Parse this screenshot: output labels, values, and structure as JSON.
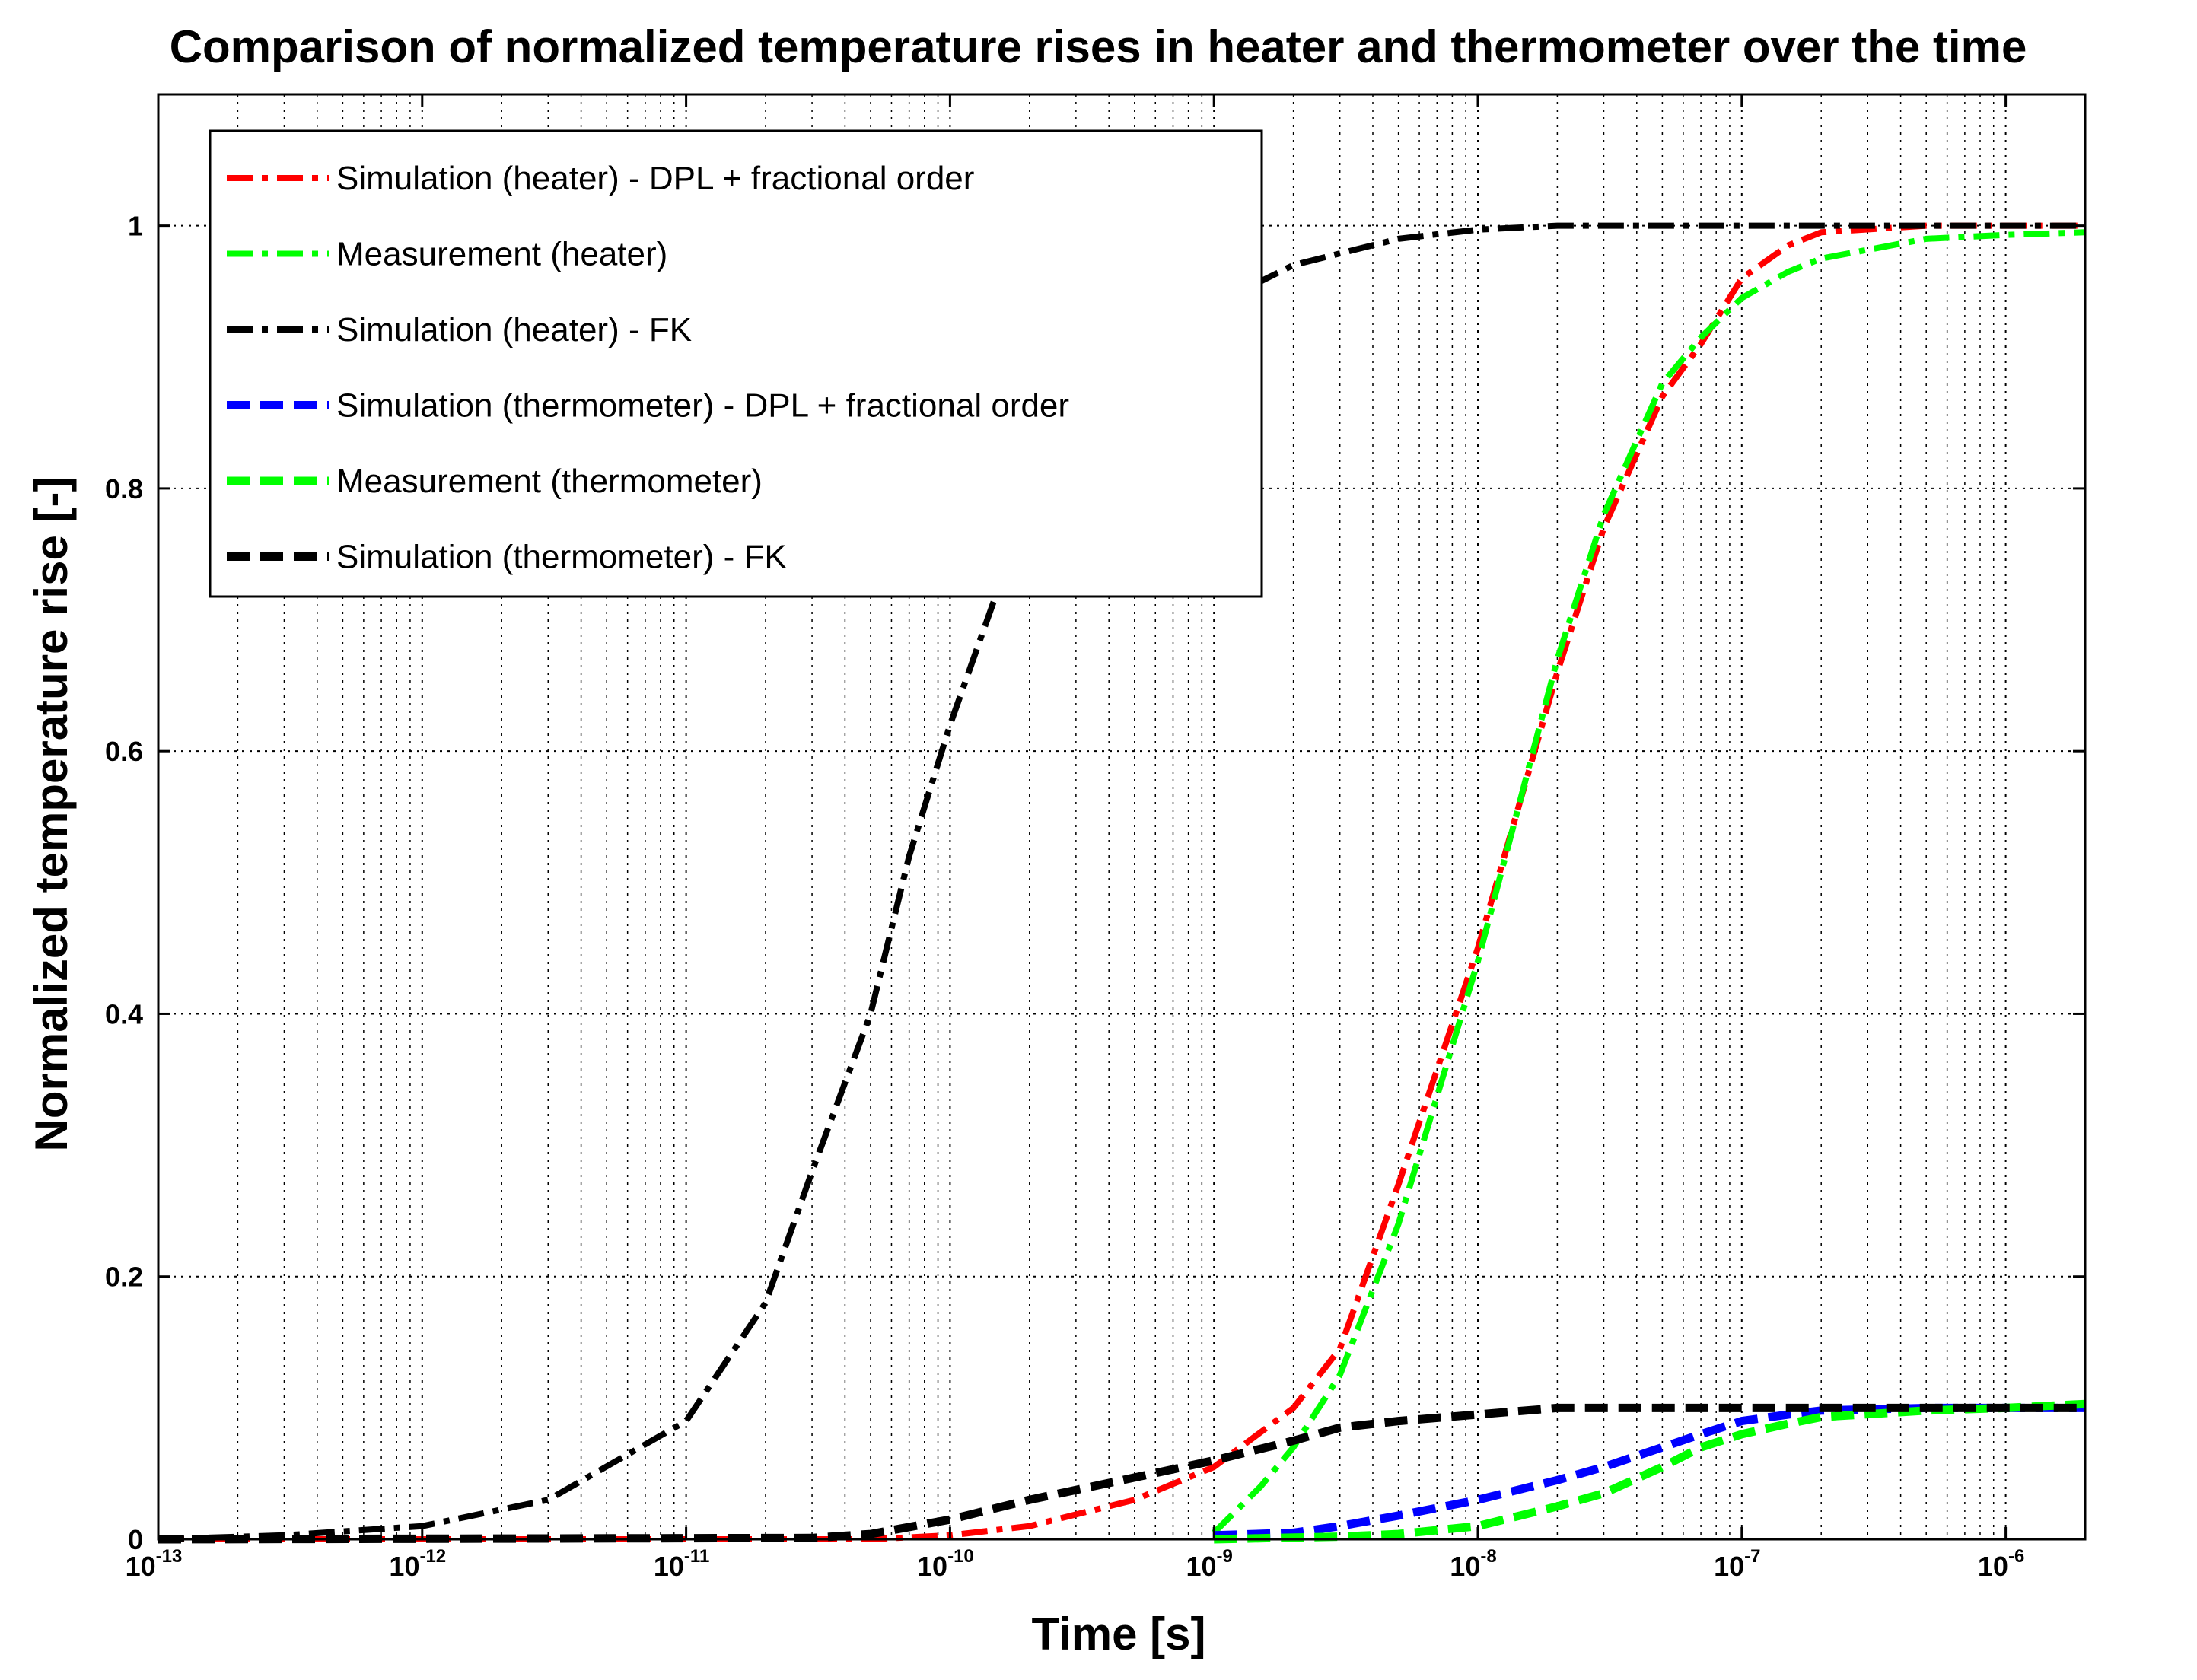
{
  "chart_data": {
    "type": "line",
    "title": "Comparison of normalized temperature rises in heater and thermometer over the time",
    "xlabel": "Time [s]",
    "ylabel": "Normalized temperature rise [-]",
    "xscale": "log",
    "xlim": [
      1e-13,
      2e-06
    ],
    "ylim": [
      0,
      1.1
    ],
    "x_ticks": [
      {
        "base": "10",
        "exp": "-13",
        "value": 1e-13
      },
      {
        "base": "10",
        "exp": "-12",
        "value": 1e-12
      },
      {
        "base": "10",
        "exp": "-11",
        "value": 1e-11
      },
      {
        "base": "10",
        "exp": "-10",
        "value": 1e-10
      },
      {
        "base": "10",
        "exp": "-9",
        "value": 1e-09
      },
      {
        "base": "10",
        "exp": "-8",
        "value": 1e-08
      },
      {
        "base": "10",
        "exp": "-7",
        "value": 1e-07
      },
      {
        "base": "10",
        "exp": "-6",
        "value": 1e-06
      }
    ],
    "y_ticks": [
      {
        "label": "0",
        "value": 0
      },
      {
        "label": "0.2",
        "value": 0.2
      },
      {
        "label": "0.4",
        "value": 0.4
      },
      {
        "label": "0.6",
        "value": 0.6
      },
      {
        "label": "0.8",
        "value": 0.8
      },
      {
        "label": "1",
        "value": 1
      }
    ],
    "grid": true,
    "legend_position": "top-left",
    "series": [
      {
        "name": "Simulation (heater) - DPL + fractional order",
        "color": "#ff0000",
        "dash": "dashdot",
        "x": [
          1e-13,
          1e-12,
          1e-11,
          5e-11,
          1e-10,
          2e-10,
          5e-10,
          1e-09,
          2e-09,
          3e-09,
          5e-09,
          1e-08,
          2e-08,
          3e-08,
          5e-08,
          7e-08,
          1e-07,
          1.5e-07,
          2e-07,
          5e-07,
          1e-06,
          2e-06
        ],
        "y": [
          0,
          0,
          0,
          0,
          0.003,
          0.01,
          0.03,
          0.055,
          0.1,
          0.145,
          0.27,
          0.45,
          0.66,
          0.77,
          0.87,
          0.91,
          0.96,
          0.985,
          0.995,
          1.0,
          1.0,
          1.0
        ]
      },
      {
        "name": "Measurement (heater)",
        "color": "#00ff00",
        "dash": "dashdot",
        "x": [
          1e-09,
          1.5e-09,
          2e-09,
          3e-09,
          5e-09,
          1e-08,
          2e-08,
          3e-08,
          5e-08,
          7e-08,
          1e-07,
          1.5e-07,
          2e-07,
          5e-07,
          1e-06,
          2e-06
        ],
        "y": [
          0.005,
          0.04,
          0.07,
          0.125,
          0.24,
          0.44,
          0.67,
          0.78,
          0.88,
          0.915,
          0.945,
          0.965,
          0.975,
          0.99,
          0.993,
          0.995
        ]
      },
      {
        "name": "Simulation (heater) - FK",
        "color": "#000000",
        "dash": "dashdot",
        "x": [
          1e-13,
          3e-13,
          1e-12,
          3e-12,
          1e-11,
          2e-11,
          3e-11,
          5e-11,
          7e-11,
          1e-10,
          1.5e-10,
          2e-10,
          3e-10,
          5e-10,
          1e-09,
          2e-09,
          5e-09,
          1e-08,
          2e-08,
          1e-07,
          2e-06
        ],
        "y": [
          0,
          0.003,
          0.01,
          0.03,
          0.09,
          0.18,
          0.28,
          0.4,
          0.52,
          0.62,
          0.72,
          0.78,
          0.85,
          0.9,
          0.94,
          0.97,
          0.99,
          0.997,
          1.0,
          1.0,
          1.0
        ]
      },
      {
        "name": "Simulation (thermometer) - DPL + fractional order",
        "color": "#0000ff",
        "dash": "dashed",
        "x": [
          1e-09,
          2e-09,
          3e-09,
          5e-09,
          1e-08,
          2e-08,
          3e-08,
          5e-08,
          7e-08,
          1e-07,
          1.5e-07,
          2e-07,
          5e-07,
          1e-06,
          2e-06
        ],
        "y": [
          0.003,
          0.005,
          0.01,
          0.018,
          0.03,
          0.045,
          0.055,
          0.07,
          0.08,
          0.09,
          0.095,
          0.098,
          0.1,
          0.1,
          0.1
        ]
      },
      {
        "name": "Measurement (thermometer)",
        "color": "#00ff00",
        "dash": "dashed",
        "x": [
          1e-09,
          3e-09,
          5e-09,
          1e-08,
          2e-08,
          3e-08,
          5e-08,
          7e-08,
          1e-07,
          1.5e-07,
          2e-07,
          5e-07,
          1e-06,
          2e-06
        ],
        "y": [
          0,
          0.002,
          0.004,
          0.01,
          0.025,
          0.035,
          0.055,
          0.07,
          0.08,
          0.088,
          0.093,
          0.098,
          0.1,
          0.103
        ]
      },
      {
        "name": "Simulation (thermometer) - FK",
        "color": "#000000",
        "dash": "dashed",
        "x": [
          1e-13,
          3e-11,
          5e-11,
          1e-10,
          2e-10,
          5e-10,
          1e-09,
          2e-09,
          3e-09,
          5e-09,
          1e-08,
          2e-08,
          1e-07,
          2e-06
        ],
        "y": [
          0,
          0.001,
          0.004,
          0.015,
          0.03,
          0.047,
          0.06,
          0.075,
          0.085,
          0.09,
          0.095,
          0.1,
          0.1,
          0.1
        ]
      }
    ]
  }
}
